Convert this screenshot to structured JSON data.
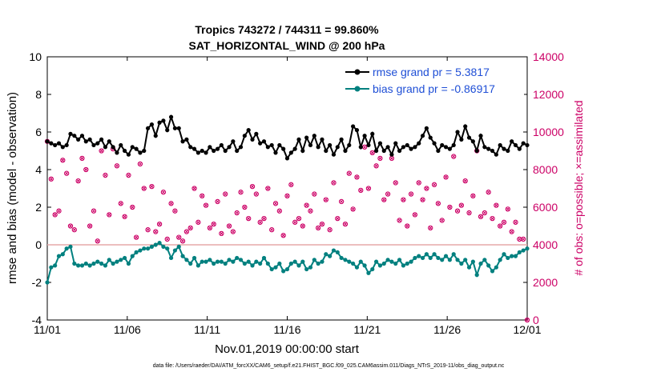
{
  "chart_data": {
    "type": "line",
    "title": "Tropics 743272 / 744311 = 99.860%",
    "subtitle": "SAT_HORIZONTAL_WIND @ 200 hPa",
    "xlabel": "Nov.01,2019 00:00:00 start",
    "ylabel": "rmse and bias (model - observation)",
    "y2label": "# of obs: o=possible; ×=assimilated",
    "footnote": "data file: /Users/raeder/DAI/ATM_forcXX/CAM6_setup/f.e21.FHIST_BGC.f09_025.CAM6assim.011/Diags_NTrS_2019-11/obs_diag_output.nc",
    "x_ticks": [
      "11/01",
      "11/06",
      "11/11",
      "11/16",
      "11/21",
      "11/26",
      "12/01"
    ],
    "x_tick_days": [
      0,
      5,
      10,
      15,
      20,
      25,
      30
    ],
    "xlim": [
      0,
      30
    ],
    "ylim": [
      -4,
      10
    ],
    "y_ticks": [
      "-4",
      "-2",
      "0",
      "2",
      "4",
      "6",
      "8",
      "10"
    ],
    "y2lim": [
      0,
      14000
    ],
    "y2_ticks": [
      "0",
      "2000",
      "4000",
      "6000",
      "8000",
      "10000",
      "12000",
      "14000"
    ],
    "series": [
      {
        "name": "rmse grand pr = 5.3817",
        "color": "#000000",
        "axis": "left",
        "values": [
          5.5,
          5.4,
          5.3,
          5.4,
          5.2,
          5.3,
          5.9,
          5.8,
          5.6,
          5.8,
          5.5,
          5.6,
          5.3,
          5.4,
          5.6,
          5.2,
          5.5,
          5.2,
          4.9,
          5.3,
          5.0,
          4.8,
          5.2,
          5.1,
          4.9,
          5.0,
          6.2,
          6.4,
          5.8,
          6.5,
          6.6,
          6.1,
          6.8,
          6.2,
          6.2,
          5.5,
          5.6,
          5.2,
          5.1,
          4.9,
          5.0,
          4.9,
          5.2,
          5.0,
          5.1,
          5.3,
          5.0,
          5.2,
          5.5,
          5.0,
          5.2,
          5.8,
          6.1,
          5.6,
          5.9,
          5.4,
          5.5,
          5.2,
          5.3,
          4.9,
          5.3,
          5.1,
          4.6,
          4.9,
          5.1,
          5.6,
          5.0,
          5.7,
          5.3,
          5.8,
          5.2,
          5.6,
          5.0,
          5.3,
          4.8,
          5.2,
          5.6,
          5.0,
          5.3,
          6.3,
          6.1,
          5.2,
          5.8,
          5.3,
          5.9,
          5.0,
          5.4,
          5.0,
          5.2,
          4.8,
          5.4,
          5.0,
          5.2,
          5.3,
          5.1,
          5.2,
          5.4,
          5.8,
          6.2,
          5.7,
          5.4,
          5.0,
          5.3,
          5.2,
          5.1,
          5.3,
          6.0,
          5.6,
          6.3,
          5.7,
          5.5,
          5.0,
          5.8,
          5.2,
          5.1,
          5.0,
          4.8,
          5.3,
          5.1,
          5.0,
          5.5,
          5.3,
          5.1,
          5.4,
          5.3
        ]
      },
      {
        "name": "bias grand pr = -0.86917",
        "color": "#00807f",
        "axis": "left",
        "values": [
          -2.0,
          -1.2,
          -1.1,
          -0.6,
          -0.5,
          -0.2,
          -0.1,
          -1.0,
          -1.1,
          -1.1,
          -1.0,
          -1.1,
          -1.0,
          -0.9,
          -1.0,
          -1.1,
          -0.8,
          -1.0,
          -0.9,
          -0.8,
          -0.7,
          -1.0,
          -0.6,
          -0.4,
          -0.3,
          -0.2,
          -0.2,
          -0.1,
          0.0,
          0.1,
          -0.1,
          -0.2,
          -0.7,
          -0.3,
          -0.1,
          -0.6,
          -0.8,
          -1.0,
          -0.7,
          -1.1,
          -0.9,
          -0.9,
          -0.8,
          -1.0,
          -0.9,
          -0.9,
          -1.0,
          -0.8,
          -0.9,
          -0.7,
          -0.8,
          -1.0,
          -0.9,
          -1.1,
          -0.9,
          -1.0,
          -0.7,
          -1.0,
          -1.3,
          -1.2,
          -1.0,
          -1.4,
          -1.3,
          -1.0,
          -0.9,
          -1.1,
          -0.9,
          -1.3,
          -1.2,
          -0.8,
          -1.0,
          -0.9,
          -0.5,
          -0.6,
          -0.3,
          -0.4,
          -0.7,
          -0.8,
          -0.9,
          -1.0,
          -1.2,
          -0.9,
          -1.1,
          -1.5,
          -1.3,
          -0.9,
          -1.1,
          -1.0,
          -0.8,
          -0.9,
          -1.0,
          -0.8,
          -1.1,
          -1.0,
          -0.9,
          -0.7,
          -0.6,
          -0.7,
          -0.5,
          -0.7,
          -0.5,
          -0.7,
          -0.8,
          -0.6,
          -0.8,
          -0.5,
          -0.8,
          -1.0,
          -0.8,
          -1.2,
          -0.9,
          -1.6,
          -1.0,
          -0.8,
          -1.1,
          -1.4,
          -1.2,
          -0.8,
          -0.5,
          -0.7,
          -0.6,
          -0.6,
          -0.4,
          -0.3,
          -0.2
        ]
      }
    ],
    "obs_counts": {
      "name": "# of obs",
      "color": "#cc0066",
      "axis": "right",
      "values": [
        9500,
        7500,
        5600,
        5800,
        8500,
        7800,
        5000,
        4800,
        7400,
        8600,
        8000,
        5000,
        5800,
        4200,
        9000,
        7700,
        5600,
        9100,
        8200,
        6200,
        5500,
        7700,
        6000,
        4400,
        8300,
        7000,
        4800,
        7100,
        4700,
        5100,
        6800,
        4300,
        6200,
        5800,
        4400,
        4200,
        4700,
        4900,
        7000,
        5200,
        6600,
        6100,
        4900,
        5100,
        6300,
        4600,
        6700,
        5000,
        4700,
        5700,
        6800,
        6000,
        5400,
        7100,
        6700,
        5200,
        5400,
        7000,
        4800,
        6200,
        5800,
        4500,
        6600,
        7200,
        5200,
        5400,
        5000,
        6100,
        5800,
        6700,
        4900,
        5100,
        6400,
        4800,
        7300,
        5400,
        6300,
        5100,
        7800,
        5900,
        7600,
        6900,
        9200,
        7000,
        8900,
        8200,
        8600,
        6400,
        6700,
        8600,
        7300,
        5300,
        6400,
        5000,
        6700,
        5600,
        7300,
        6400,
        7000,
        4900,
        7200,
        6200,
        5300,
        7600,
        6000,
        8700,
        5800,
        6100,
        7400,
        5700,
        6600,
        9000,
        5500,
        5700,
        6800,
        5400,
        6100,
        5000,
        5200,
        5900,
        4700,
        5200,
        4300,
        4300,
        0
      ]
    }
  }
}
